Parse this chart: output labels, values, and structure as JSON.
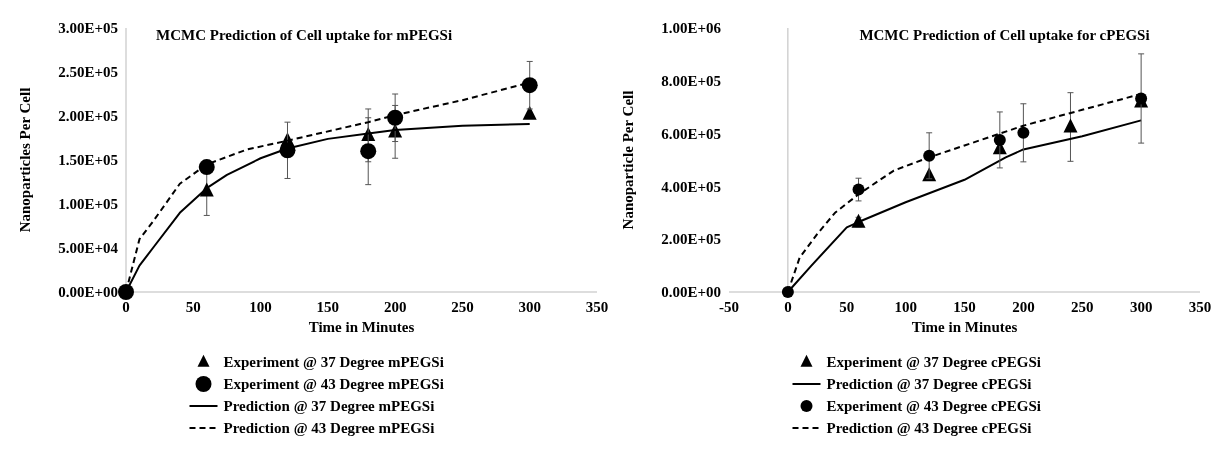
{
  "chart_data": [
    {
      "type": "scatter",
      "title": "MCMC Prediction of Cell uptake for mPEGSi",
      "xlabel": "Time in Minutes",
      "ylabel": "Nanoparticles Per Cell",
      "legend": "bottom",
      "xlim": [
        0,
        350
      ],
      "xticks": [
        0,
        50,
        100,
        150,
        200,
        250,
        300,
        350
      ],
      "ylim": [
        0,
        300000
      ],
      "yticks": [
        {
          "value": 0,
          "label": "0.00E+00"
        },
        {
          "value": 50000,
          "label": "5.00E+04"
        },
        {
          "value": 100000,
          "label": "1.00E+05"
        },
        {
          "value": 150000,
          "label": "1.50E+05"
        },
        {
          "value": 200000,
          "label": "2.00E+05"
        },
        {
          "value": 250000,
          "label": "2.50E+05"
        },
        {
          "value": 300000,
          "label": "3.00E+05"
        }
      ],
      "series": [
        {
          "name": "Experiment @ 37 Degree mPEGSi",
          "marker": "triangle",
          "color": "#000000",
          "x": [
            60,
            120,
            180,
            200,
            300
          ],
          "values": [
            115000,
            172000,
            178000,
            182000,
            202000
          ],
          "errors": [
            28000,
            null,
            30000,
            30000,
            null
          ]
        },
        {
          "name": "Experiment @ 43 Degree mPEGSi",
          "marker": "circle",
          "color": "#000000",
          "x": [
            0,
            60,
            120,
            180,
            200,
            300
          ],
          "values": [
            0,
            142000,
            161000,
            160000,
            198000,
            235000
          ],
          "errors": [
            null,
            null,
            32000,
            38000,
            27000,
            27000
          ]
        },
        {
          "name": "Prediction @ 37 Degree mPEGSi",
          "type": "line",
          "line_style": "solid",
          "color": "#000000",
          "x": [
            0,
            10,
            20,
            40,
            60,
            75,
            100,
            120,
            150,
            180,
            200,
            250,
            300
          ],
          "values": [
            0,
            30000,
            50000,
            90000,
            118000,
            133000,
            152000,
            163000,
            174000,
            180000,
            184000,
            189000,
            191000
          ]
        },
        {
          "name": "Prediction @ 43 Degree mPEGSi",
          "type": "line",
          "line_style": "dashed",
          "color": "#000000",
          "x": [
            0,
            10,
            20,
            40,
            60,
            90,
            120,
            180,
            200,
            250,
            300
          ],
          "values": [
            0,
            60000,
            80000,
            123000,
            145000,
            162000,
            172000,
            193000,
            201000,
            218000,
            238000
          ]
        }
      ]
    },
    {
      "type": "scatter",
      "title": "MCMC Prediction of Cell uptake for cPEGSi",
      "xlabel": "Time in Minutes",
      "ylabel": "Nanoparticle Per Cell",
      "legend": "bottom",
      "xlim": [
        -50,
        350
      ],
      "xticks": [
        -50,
        0,
        50,
        100,
        150,
        200,
        250,
        300,
        350
      ],
      "ylim": [
        0,
        1000000
      ],
      "yticks": [
        {
          "value": 0,
          "label": "0.00E+00"
        },
        {
          "value": 200000,
          "label": "2.00E+05"
        },
        {
          "value": 400000,
          "label": "4.00E+05"
        },
        {
          "value": 600000,
          "label": "6.00E+05"
        },
        {
          "value": 800000,
          "label": "8.00E+05"
        },
        {
          "value": 1000000,
          "label": "1.00E+06"
        }
      ],
      "series": [
        {
          "name": "Experiment @ 37 Degree cPEGSi",
          "marker": "triangle",
          "color": "#000000",
          "x": [
            60,
            120,
            180,
            240,
            300
          ],
          "values": [
            265000,
            441000,
            543000,
            625000,
            720000
          ],
          "errors": [
            18000,
            null,
            null,
            130000,
            null
          ]
        },
        {
          "name": "Prediction @ 37 Degree cPEGSi",
          "type": "line",
          "line_style": "solid",
          "color": "#000000",
          "x": [
            0,
            20,
            50,
            60,
            100,
            150,
            185,
            200,
            250,
            300
          ],
          "values": [
            0,
            100000,
            245000,
            265000,
            340000,
            425000,
            510000,
            540000,
            590000,
            650000
          ]
        },
        {
          "name": "Experiment @ 43 Degree cPEGSi",
          "marker": "circle",
          "color": "#000000",
          "x": [
            0,
            60,
            120,
            180,
            200,
            300
          ],
          "values": [
            0,
            388000,
            516000,
            576000,
            603000,
            733000
          ],
          "errors": [
            null,
            43000,
            87000,
            106000,
            110000,
            169000
          ]
        },
        {
          "name": "Prediction @ 43 Degree cPEGSi",
          "type": "line",
          "line_style": "dashed",
          "color": "#000000",
          "x": [
            0,
            10,
            25,
            40,
            60,
            90,
            120,
            150,
            200,
            250,
            300
          ],
          "values": [
            0,
            130000,
            220000,
            300000,
            370000,
            460000,
            510000,
            555000,
            630000,
            690000,
            750000
          ]
        }
      ]
    }
  ]
}
